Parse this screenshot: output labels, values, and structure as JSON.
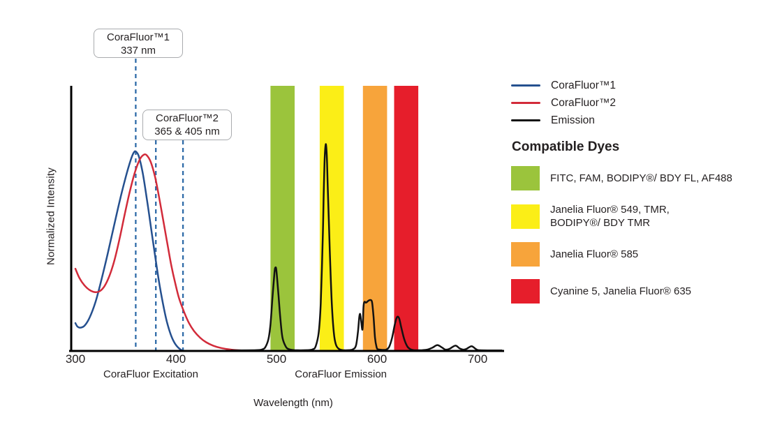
{
  "chart_data": {
    "type": "line",
    "title": "",
    "xlabel": "Wavelength (nm)",
    "ylabel": "Normalized Intensity",
    "x_axis": {
      "min": 300,
      "max": 726,
      "ticks": [
        300,
        400,
        500,
        600,
        700
      ]
    },
    "y_axis": {
      "min": 0,
      "max": 1,
      "ticks": []
    },
    "grid": false,
    "legend_position": "right",
    "region_labels": [
      {
        "text": "CoraFluor Excitation",
        "center_nm": 375
      },
      {
        "text": "CoraFluor Emission",
        "center_nm": 564
      }
    ],
    "annotations": [
      {
        "lines": [
          "CoraFluor™1",
          "337 nm"
        ],
        "stated_nm": [
          337
        ]
      },
      {
        "lines": [
          "CoraFluor™2",
          "365 & 405 nm"
        ],
        "stated_nm": [
          365,
          405
        ]
      }
    ],
    "dashed_markers": {
      "color": "#2F6BA8",
      "drawn_nm": [
        360,
        380,
        407
      ]
    },
    "bands": [
      {
        "from_nm": 494,
        "to_nm": 518,
        "color": "#9BC43C"
      },
      {
        "from_nm": 543,
        "to_nm": 567,
        "color": "#FBEE17"
      },
      {
        "from_nm": 586,
        "to_nm": 610,
        "color": "#F7A43B"
      },
      {
        "from_nm": 617,
        "to_nm": 641,
        "color": "#E61E2B"
      }
    ],
    "series": [
      {
        "name": "CoraFluor™1",
        "color": "#25508F",
        "points": [
          [
            300,
            0.105
          ],
          [
            302,
            0.092
          ],
          [
            305,
            0.088
          ],
          [
            309,
            0.095
          ],
          [
            314,
            0.125
          ],
          [
            320,
            0.185
          ],
          [
            326,
            0.27
          ],
          [
            332,
            0.365
          ],
          [
            338,
            0.465
          ],
          [
            344,
            0.565
          ],
          [
            350,
            0.655
          ],
          [
            355,
            0.72
          ],
          [
            358,
            0.748
          ],
          [
            360,
            0.752
          ],
          [
            363,
            0.735
          ],
          [
            367,
            0.67
          ],
          [
            371,
            0.575
          ],
          [
            375,
            0.47
          ],
          [
            379,
            0.365
          ],
          [
            383,
            0.265
          ],
          [
            387,
            0.18
          ],
          [
            391,
            0.11
          ],
          [
            395,
            0.06
          ],
          [
            399,
            0.028
          ],
          [
            403,
            0.01
          ],
          [
            406,
            0.002
          ]
        ]
      },
      {
        "name": "CoraFluor™2",
        "color": "#D22B3A",
        "points": [
          [
            300,
            0.31
          ],
          [
            304,
            0.275
          ],
          [
            309,
            0.247
          ],
          [
            314,
            0.23
          ],
          [
            319,
            0.222
          ],
          [
            324,
            0.225
          ],
          [
            329,
            0.245
          ],
          [
            334,
            0.285
          ],
          [
            339,
            0.345
          ],
          [
            344,
            0.425
          ],
          [
            349,
            0.515
          ],
          [
            354,
            0.6
          ],
          [
            359,
            0.672
          ],
          [
            364,
            0.722
          ],
          [
            368,
            0.74
          ],
          [
            371,
            0.738
          ],
          [
            375,
            0.712
          ],
          [
            379,
            0.66
          ],
          [
            383,
            0.585
          ],
          [
            387,
            0.5
          ],
          [
            391,
            0.415
          ],
          [
            395,
            0.33
          ],
          [
            399,
            0.26
          ],
          [
            403,
            0.2
          ],
          [
            408,
            0.148
          ],
          [
            413,
            0.105
          ],
          [
            418,
            0.075
          ],
          [
            424,
            0.05
          ],
          [
            430,
            0.033
          ],
          [
            437,
            0.02
          ],
          [
            445,
            0.011
          ],
          [
            455,
            0.005
          ],
          [
            465,
            0.002
          ]
        ]
      },
      {
        "name": "Emission",
        "color": "#121212",
        "points": [
          [
            455,
            0.002
          ],
          [
            480,
            0.003
          ],
          [
            486,
            0.006
          ],
          [
            489,
            0.015
          ],
          [
            492,
            0.045
          ],
          [
            494,
            0.1
          ],
          [
            496,
            0.2
          ],
          [
            498,
            0.295
          ],
          [
            499,
            0.315
          ],
          [
            500,
            0.3
          ],
          [
            502,
            0.21
          ],
          [
            504,
            0.115
          ],
          [
            506,
            0.05
          ],
          [
            509,
            0.018
          ],
          [
            512,
            0.007
          ],
          [
            518,
            0.003
          ],
          [
            530,
            0.003
          ],
          [
            536,
            0.006
          ],
          [
            539,
            0.018
          ],
          [
            542,
            0.07
          ],
          [
            544,
            0.18
          ],
          [
            546,
            0.42
          ],
          [
            547,
            0.6
          ],
          [
            548,
            0.73
          ],
          [
            549,
            0.78
          ],
          [
            550,
            0.74
          ],
          [
            551,
            0.62
          ],
          [
            553,
            0.38
          ],
          [
            555,
            0.18
          ],
          [
            557,
            0.07
          ],
          [
            559,
            0.025
          ],
          [
            562,
            0.008
          ],
          [
            566,
            0.003
          ],
          [
            572,
            0.003
          ],
          [
            576,
            0.006
          ],
          [
            579,
            0.02
          ],
          [
            581,
            0.07
          ],
          [
            583,
            0.14
          ],
          [
            585.5,
            0.08
          ],
          [
            586.5,
            0.165
          ],
          [
            587.5,
            0.185
          ],
          [
            589,
            0.182
          ],
          [
            591,
            0.188
          ],
          [
            593,
            0.192
          ],
          [
            595,
            0.185
          ],
          [
            596.5,
            0.13
          ],
          [
            598,
            0.05
          ],
          [
            599.5,
            0.015
          ],
          [
            601,
            0.006
          ],
          [
            606,
            0.004
          ],
          [
            609,
            0.005
          ],
          [
            612,
            0.015
          ],
          [
            615,
            0.05
          ],
          [
            618,
            0.105
          ],
          [
            620,
            0.128
          ],
          [
            622,
            0.123
          ],
          [
            624,
            0.09
          ],
          [
            627,
            0.045
          ],
          [
            630,
            0.018
          ],
          [
            633,
            0.007
          ],
          [
            637,
            0.003
          ],
          [
            645,
            0.003
          ],
          [
            650,
            0.005
          ],
          [
            655,
            0.012
          ],
          [
            660,
            0.022
          ],
          [
            665,
            0.012
          ],
          [
            668,
            0.005
          ],
          [
            672,
            0.008
          ],
          [
            678,
            0.02
          ],
          [
            682,
            0.01
          ],
          [
            686,
            0.005
          ],
          [
            689,
            0.008
          ],
          [
            694,
            0.018
          ],
          [
            698,
            0.008
          ],
          [
            701,
            0.003
          ],
          [
            710,
            0.002
          ],
          [
            724,
            0.002
          ]
        ]
      }
    ]
  },
  "legend": {
    "items": [
      {
        "label": "CoraFluor™1",
        "color": "#25508F"
      },
      {
        "label": "CoraFluor™2",
        "color": "#D22B3A"
      },
      {
        "label": "Emission",
        "color": "#121212"
      }
    ]
  },
  "compatible_dyes": {
    "heading": "Compatible Dyes",
    "items": [
      {
        "color": "#9BC43C",
        "label": "FITC, FAM, BODIPY®/ BDY FL, AF488"
      },
      {
        "color": "#FBEE17",
        "label": "Janelia Fluor® 549, TMR,\nBODIPY®/ BDY TMR"
      },
      {
        "color": "#F7A43B",
        "label": "Janelia Fluor® 585"
      },
      {
        "color": "#E61E2B",
        "label": "Cyanine 5, Janelia Fluor® 635"
      }
    ]
  }
}
